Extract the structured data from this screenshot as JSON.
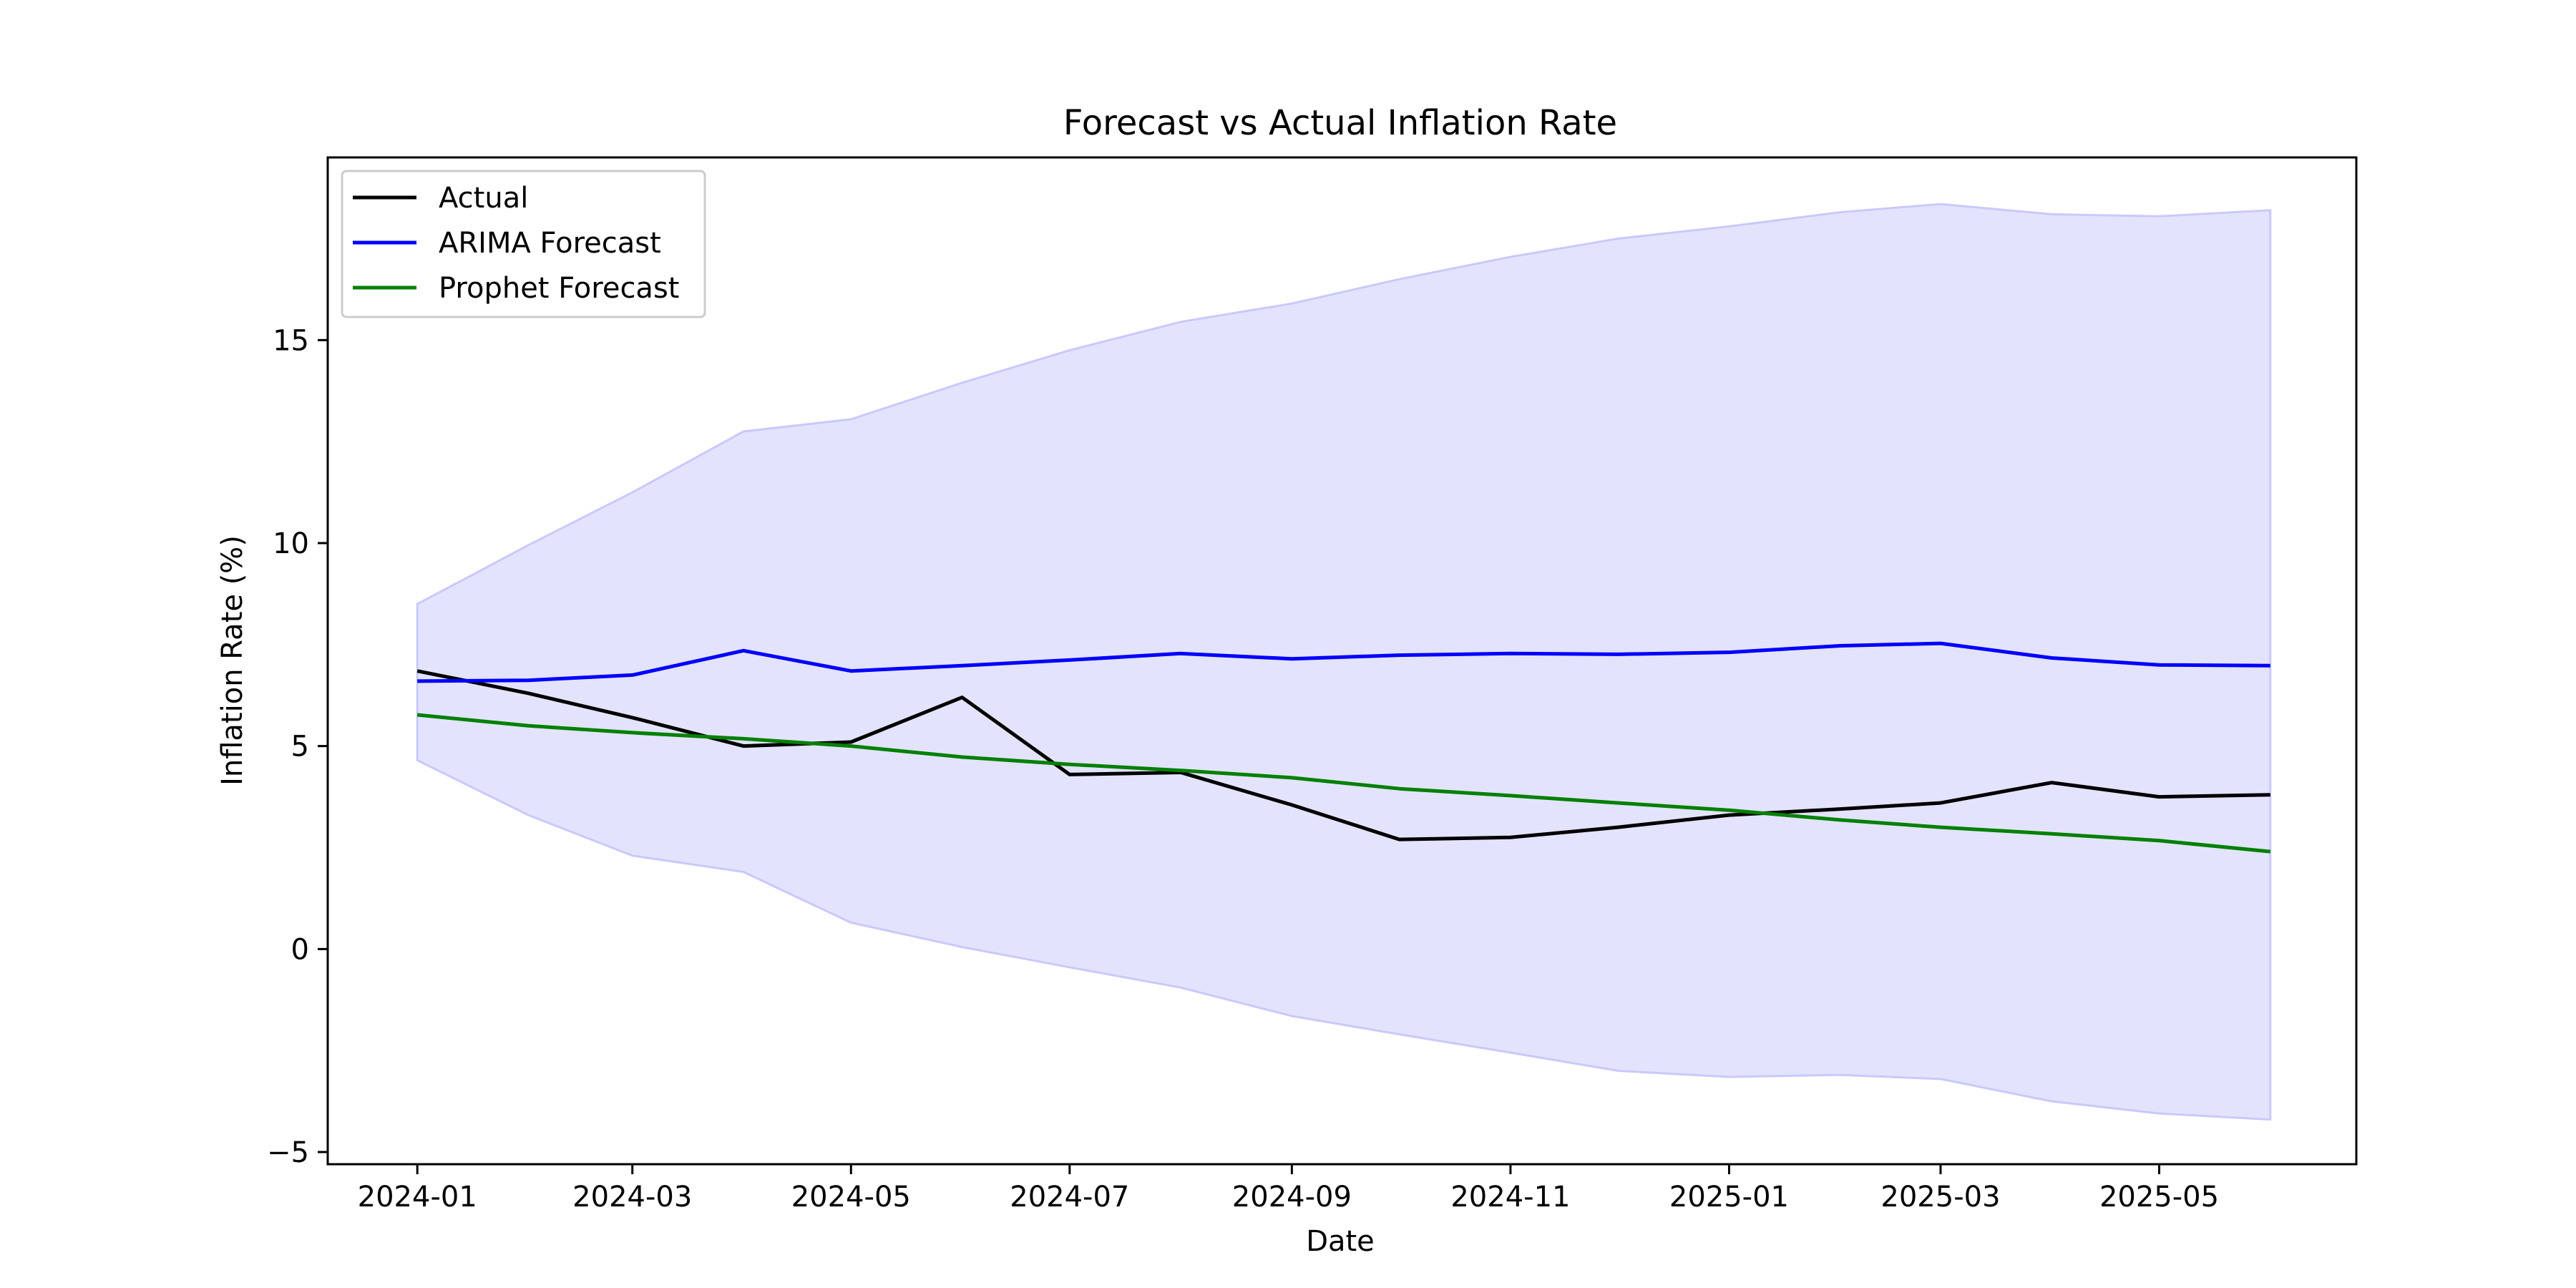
{
  "chart_data": {
    "type": "line",
    "title": "Forecast vs Actual Inflation Rate",
    "xlabel": "Date",
    "ylabel": "Inflation Rate (%)",
    "x": [
      "2024-01",
      "2024-02",
      "2024-03",
      "2024-04",
      "2024-05",
      "2024-06",
      "2024-07",
      "2024-08",
      "2024-09",
      "2024-10",
      "2024-11",
      "2024-12",
      "2025-01",
      "2025-02",
      "2025-03",
      "2025-04",
      "2025-05",
      "2025-06"
    ],
    "x_ticks": [
      "2024-01",
      "2024-03",
      "2024-05",
      "2024-07",
      "2024-09",
      "2024-11",
      "2025-01",
      "2025-03",
      "2025-05"
    ],
    "y_ticks": [
      -5,
      0,
      5,
      10,
      15
    ],
    "y_tick_labels": [
      "−5",
      "0",
      "5",
      "10",
      "15"
    ],
    "xlim": [
      "2023-12-07",
      "2025-06-25"
    ],
    "ylim": [
      -5.3,
      19.5
    ],
    "grid": false,
    "legend_position": "top-left",
    "series": [
      {
        "name": "Actual",
        "color": "#000000",
        "values": [
          6.85,
          6.3,
          5.7,
          5.0,
          5.1,
          6.2,
          4.3,
          4.35,
          3.55,
          2.7,
          2.75,
          3.0,
          3.3,
          3.45,
          3.6,
          4.1,
          3.75,
          3.8
        ]
      },
      {
        "name": "ARIMA Forecast",
        "color": "#0000ff",
        "values": [
          6.6,
          6.62,
          6.75,
          7.35,
          6.85,
          6.98,
          7.12,
          7.28,
          7.15,
          7.24,
          7.28,
          7.26,
          7.31,
          7.47,
          7.53,
          7.17,
          7.0,
          6.98
        ]
      },
      {
        "name": "Prophet Forecast",
        "color": "#008000",
        "values": [
          5.77,
          5.5,
          5.33,
          5.18,
          5.0,
          4.73,
          4.55,
          4.4,
          4.22,
          3.95,
          3.78,
          3.6,
          3.42,
          3.18,
          3.0,
          2.84,
          2.67,
          2.4
        ]
      }
    ],
    "confidence_band": {
      "color": "#e3e3fd",
      "edge_color": "#c9c9fb",
      "upper": [
        8.5,
        9.95,
        11.25,
        12.75,
        13.05,
        13.95,
        14.75,
        15.45,
        15.9,
        16.5,
        17.05,
        17.5,
        17.8,
        18.15,
        18.35,
        18.1,
        18.05,
        18.2
      ],
      "lower": [
        4.65,
        3.3,
        2.3,
        1.9,
        0.65,
        0.05,
        -0.45,
        -0.95,
        -1.65,
        -2.1,
        -2.55,
        -3.0,
        -3.15,
        -3.1,
        -3.2,
        -3.75,
        -4.05,
        -4.2
      ]
    }
  }
}
